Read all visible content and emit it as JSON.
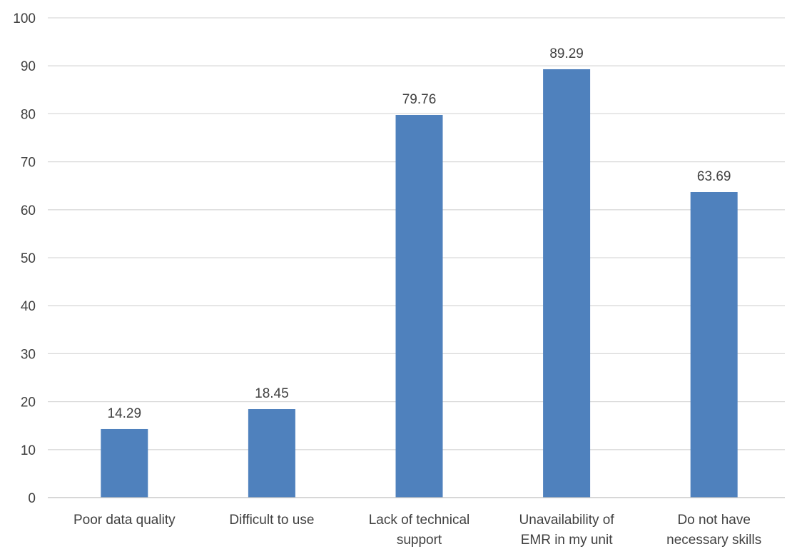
{
  "chart_data": {
    "type": "bar",
    "title": "",
    "xlabel": "",
    "ylabel": "",
    "ylim": [
      0,
      100
    ],
    "yticks": [
      0,
      10,
      20,
      30,
      40,
      50,
      60,
      70,
      80,
      90,
      100
    ],
    "grid": true,
    "bar_color": "#4F81BD",
    "categories": [
      [
        "Poor data quality"
      ],
      [
        "Difficult to use"
      ],
      [
        "Lack of technical",
        "support"
      ],
      [
        "Unavailability of",
        "EMR in my unit"
      ],
      [
        "Do not have",
        "necessary skills"
      ]
    ],
    "values": [
      14.29,
      18.45,
      79.76,
      89.29,
      63.69
    ],
    "data_labels": [
      "14.29",
      "18.45",
      "79.76",
      "89.29",
      "63.69"
    ]
  }
}
